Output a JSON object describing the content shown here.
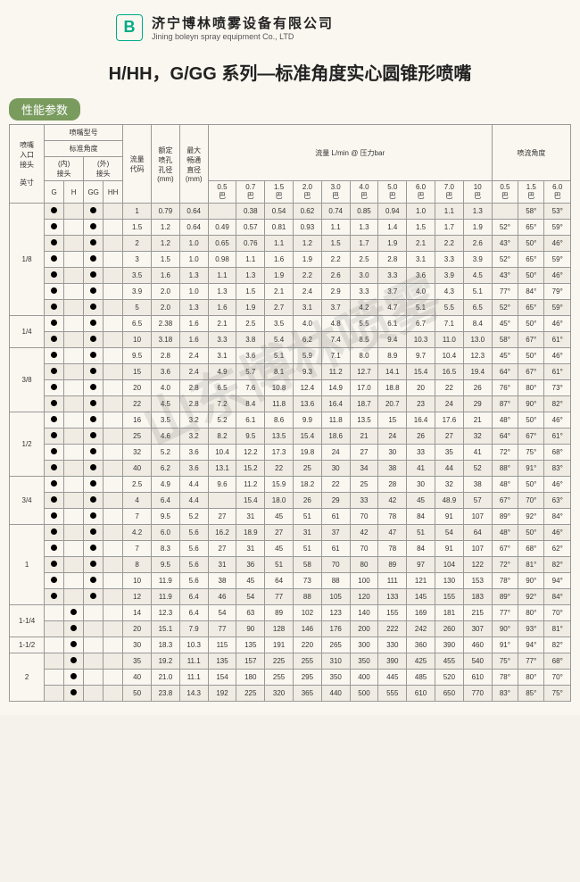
{
  "company": {
    "cn": "济宁博林喷雾设备有限公司",
    "en": "Jining boleyn spray equipment Co., LTD"
  },
  "title": "H/HH，G/GG 系列—标准角度实心圆锥形喷嘴",
  "section_label": "性能参数",
  "watermark": "山东博林喷雾",
  "headers": {
    "inlet": "喷嘴\n入口\n接头\n\n英寸",
    "model": "喷嘴型号",
    "std_angle": "标准角度",
    "inner": "(内)\n接头",
    "outer": "(外)\n接头",
    "g": "G",
    "h": "H",
    "gg": "GG",
    "hh": "HH",
    "flow_code": "流量\n代码",
    "orifice": "额定\n喷孔\n孔径\n(mm)",
    "max_pass": "最大\n畅通\n直径\n(mm)",
    "flow_label": "流量  L/min @ 压力bar",
    "spray_angle": "喷流角度",
    "p05": "0.5\n巴",
    "p07": "0.7\n巴",
    "p15": "1.5\n巴",
    "p20": "2.0\n巴",
    "p30": "3.0\n巴",
    "p40": "4.0\n巴",
    "p50": "5.0\n巴",
    "p60": "6.0\n巴",
    "p70": "7.0\n巴",
    "p10": "10\n巴",
    "a05": "0.5\n巴",
    "a15": "1.5\n巴",
    "a60": "6.0\n巴"
  },
  "groups": [
    {
      "inlet": "1/8",
      "rows": [
        {
          "d": [
            "g",
            "gg"
          ],
          "c": "1",
          "o": "0.79",
          "m": "0.64",
          "f": [
            "",
            "0.38",
            "0.54",
            "0.62",
            "0.74",
            "0.85",
            "0.94",
            "1.0",
            "1.1",
            "1.3"
          ],
          "a": [
            "",
            "58°",
            "53°"
          ]
        },
        {
          "d": [
            "g",
            "gg"
          ],
          "c": "1.5",
          "o": "1.2",
          "m": "0.64",
          "f": [
            "0.49",
            "0.57",
            "0.81",
            "0.93",
            "1.1",
            "1.3",
            "1.4",
            "1.5",
            "1.7",
            "1.9"
          ],
          "a": [
            "52°",
            "65°",
            "59°"
          ]
        },
        {
          "d": [
            "g",
            "gg"
          ],
          "c": "2",
          "o": "1.2",
          "m": "1.0",
          "f": [
            "0.65",
            "0.76",
            "1.1",
            "1.2",
            "1.5",
            "1.7",
            "1.9",
            "2.1",
            "2.2",
            "2.6"
          ],
          "a": [
            "43°",
            "50°",
            "46°"
          ]
        },
        {
          "d": [
            "g",
            "gg"
          ],
          "c": "3",
          "o": "1.5",
          "m": "1.0",
          "f": [
            "0.98",
            "1.1",
            "1.6",
            "1.9",
            "2.2",
            "2.5",
            "2.8",
            "3.1",
            "3.3",
            "3.9"
          ],
          "a": [
            "52°",
            "65°",
            "59°"
          ]
        },
        {
          "d": [
            "g",
            "gg"
          ],
          "c": "3.5",
          "o": "1.6",
          "m": "1.3",
          "f": [
            "1.1",
            "1.3",
            "1.9",
            "2.2",
            "2.6",
            "3.0",
            "3.3",
            "3.6",
            "3.9",
            "4.5"
          ],
          "a": [
            "43°",
            "50°",
            "46°"
          ]
        },
        {
          "d": [
            "g",
            "gg"
          ],
          "c": "3.9",
          "o": "2.0",
          "m": "1.0",
          "f": [
            "1.3",
            "1.5",
            "2.1",
            "2.4",
            "2.9",
            "3.3",
            "3.7",
            "4.0",
            "4.3",
            "5.1"
          ],
          "a": [
            "77°",
            "84°",
            "79°"
          ]
        },
        {
          "d": [
            "g",
            "gg"
          ],
          "c": "5",
          "o": "2.0",
          "m": "1.3",
          "f": [
            "1.6",
            "1.9",
            "2.7",
            "3.1",
            "3.7",
            "4.2",
            "4.7",
            "5.1",
            "5.5",
            "6.5"
          ],
          "a": [
            "52°",
            "65°",
            "59°"
          ]
        }
      ]
    },
    {
      "inlet": "1/4",
      "rows": [
        {
          "d": [
            "g",
            "gg"
          ],
          "c": "6.5",
          "o": "2.38",
          "m": "1.6",
          "f": [
            "2.1",
            "2.5",
            "3.5",
            "4.0",
            "4.8",
            "5.5",
            "6.1",
            "6.7",
            "7.1",
            "8.4"
          ],
          "a": [
            "45°",
            "50°",
            "46°"
          ]
        },
        {
          "d": [
            "g",
            "gg"
          ],
          "c": "10",
          "o": "3.18",
          "m": "1.6",
          "f": [
            "3.3",
            "3.8",
            "5.4",
            "6.2",
            "7.4",
            "8.5",
            "9.4",
            "10.3",
            "11.0",
            "13.0"
          ],
          "a": [
            "58°",
            "67°",
            "61°"
          ]
        }
      ]
    },
    {
      "inlet": "3/8",
      "rows": [
        {
          "d": [
            "g",
            "gg"
          ],
          "c": "9.5",
          "o": "2.8",
          "m": "2.4",
          "f": [
            "3.1",
            "3.6",
            "5.1",
            "5.9",
            "7.1",
            "8.0",
            "8.9",
            "9.7",
            "10.4",
            "12.3"
          ],
          "a": [
            "45°",
            "50°",
            "46°"
          ]
        },
        {
          "d": [
            "g",
            "gg"
          ],
          "c": "15",
          "o": "3.6",
          "m": "2.4",
          "f": [
            "4.9",
            "5.7",
            "8.1",
            "9.3",
            "11.2",
            "12.7",
            "14.1",
            "15.4",
            "16.5",
            "19.4"
          ],
          "a": [
            "64°",
            "67°",
            "61°"
          ]
        },
        {
          "d": [
            "g",
            "gg"
          ],
          "c": "20",
          "o": "4.0",
          "m": "2.8",
          "f": [
            "6.5",
            "7.6",
            "10.8",
            "12.4",
            "14.9",
            "17.0",
            "18.8",
            "20",
            "22",
            "26"
          ],
          "a": [
            "76°",
            "80°",
            "73°"
          ]
        },
        {
          "d": [
            "g",
            "gg"
          ],
          "c": "22",
          "o": "4.5",
          "m": "2.8",
          "f": [
            "7.2",
            "8.4",
            "11.8",
            "13.6",
            "16.4",
            "18.7",
            "20.7",
            "23",
            "24",
            "29"
          ],
          "a": [
            "87°",
            "90°",
            "82°"
          ]
        }
      ]
    },
    {
      "inlet": "1/2",
      "rows": [
        {
          "d": [
            "g",
            "gg"
          ],
          "c": "16",
          "o": "3.5",
          "m": "3.2",
          "f": [
            "5.2",
            "6.1",
            "8.6",
            "9.9",
            "11.8",
            "13.5",
            "15",
            "16.4",
            "17.6",
            "21"
          ],
          "a": [
            "48°",
            "50°",
            "46°"
          ]
        },
        {
          "d": [
            "g",
            "gg"
          ],
          "c": "25",
          "o": "4.6",
          "m": "3.2",
          "f": [
            "8.2",
            "9.5",
            "13.5",
            "15.4",
            "18.6",
            "21",
            "24",
            "26",
            "27",
            "32"
          ],
          "a": [
            "64°",
            "67°",
            "61°"
          ]
        },
        {
          "d": [
            "g",
            "gg"
          ],
          "c": "32",
          "o": "5.2",
          "m": "3.6",
          "f": [
            "10.4",
            "12.2",
            "17.3",
            "19.8",
            "24",
            "27",
            "30",
            "33",
            "35",
            "41"
          ],
          "a": [
            "72°",
            "75°",
            "68°"
          ]
        },
        {
          "d": [
            "g",
            "gg"
          ],
          "c": "40",
          "o": "6.2",
          "m": "3.6",
          "f": [
            "13.1",
            "15.2",
            "22",
            "25",
            "30",
            "34",
            "38",
            "41",
            "44",
            "52"
          ],
          "a": [
            "88°",
            "91°",
            "83°"
          ]
        }
      ]
    },
    {
      "inlet": "3/4",
      "rows": [
        {
          "d": [
            "g",
            "gg"
          ],
          "c": "2.5",
          "o": "4.9",
          "m": "4.4",
          "f": [
            "9.6",
            "11.2",
            "15.9",
            "18.2",
            "22",
            "25",
            "28",
            "30",
            "32",
            "38"
          ],
          "a": [
            "48°",
            "50°",
            "46°"
          ]
        },
        {
          "d": [
            "g",
            "gg"
          ],
          "c": "4",
          "o": "6.4",
          "m": "4.4",
          "f": [
            "",
            "15.4",
            "18.0",
            "26",
            "29",
            "33",
            "42",
            "45",
            "48.9",
            "57"
          ],
          "a": [
            "67°",
            "70°",
            "63°"
          ]
        },
        {
          "d": [
            "g",
            "gg"
          ],
          "c": "7",
          "o": "9.5",
          "m": "5.2",
          "f": [
            "27",
            "31",
            "45",
            "51",
            "61",
            "70",
            "78",
            "84",
            "91",
            "107"
          ],
          "a": [
            "89°",
            "92°",
            "84°"
          ]
        }
      ]
    },
    {
      "inlet": "1",
      "rows": [
        {
          "d": [
            "g",
            "gg"
          ],
          "c": "4.2",
          "o": "6.0",
          "m": "5.6",
          "f": [
            "16.2",
            "18.9",
            "27",
            "31",
            "37",
            "42",
            "47",
            "51",
            "54",
            "64"
          ],
          "a": [
            "48°",
            "50°",
            "46°"
          ]
        },
        {
          "d": [
            "g",
            "gg"
          ],
          "c": "7",
          "o": "8.3",
          "m": "5.6",
          "f": [
            "27",
            "31",
            "45",
            "51",
            "61",
            "70",
            "78",
            "84",
            "91",
            "107"
          ],
          "a": [
            "67°",
            "68°",
            "62°"
          ]
        },
        {
          "d": [
            "g",
            "gg"
          ],
          "c": "8",
          "o": "9.5",
          "m": "5.6",
          "f": [
            "31",
            "36",
            "51",
            "58",
            "70",
            "80",
            "89",
            "97",
            "104",
            "122"
          ],
          "a": [
            "72°",
            "81°",
            "82°"
          ]
        },
        {
          "d": [
            "g",
            "gg"
          ],
          "c": "10",
          "o": "11.9",
          "m": "5.6",
          "f": [
            "38",
            "45",
            "64",
            "73",
            "88",
            "100",
            "111",
            "121",
            "130",
            "153"
          ],
          "a": [
            "78°",
            "90°",
            "94°"
          ]
        },
        {
          "d": [
            "g",
            "gg"
          ],
          "c": "12",
          "o": "11.9",
          "m": "6.4",
          "f": [
            "46",
            "54",
            "77",
            "88",
            "105",
            "120",
            "133",
            "145",
            "155",
            "183"
          ],
          "a": [
            "89°",
            "92°",
            "84°"
          ]
        }
      ]
    },
    {
      "inlet": "1-1/4",
      "rows": [
        {
          "d": [
            "h"
          ],
          "c": "14",
          "o": "12.3",
          "m": "6.4",
          "f": [
            "54",
            "63",
            "89",
            "102",
            "123",
            "140",
            "155",
            "169",
            "181",
            "215"
          ],
          "a": [
            "77°",
            "80°",
            "70°"
          ]
        },
        {
          "d": [
            "h"
          ],
          "c": "20",
          "o": "15.1",
          "m": "7.9",
          "f": [
            "77",
            "90",
            "128",
            "146",
            "176",
            "200",
            "222",
            "242",
            "260",
            "307"
          ],
          "a": [
            "90°",
            "93°",
            "81°"
          ]
        }
      ]
    },
    {
      "inlet": "1-1/2",
      "rows": [
        {
          "d": [
            "h"
          ],
          "c": "30",
          "o": "18.3",
          "m": "10.3",
          "f": [
            "115",
            "135",
            "191",
            "220",
            "265",
            "300",
            "330",
            "360",
            "390",
            "460"
          ],
          "a": [
            "91°",
            "94°",
            "82°"
          ]
        }
      ]
    },
    {
      "inlet": "2",
      "rows": [
        {
          "d": [
            "h"
          ],
          "c": "35",
          "o": "19.2",
          "m": "11.1",
          "f": [
            "135",
            "157",
            "225",
            "255",
            "310",
            "350",
            "390",
            "425",
            "455",
            "540"
          ],
          "a": [
            "75°",
            "77°",
            "68°"
          ]
        },
        {
          "d": [
            "h"
          ],
          "c": "40",
          "o": "21.0",
          "m": "11.1",
          "f": [
            "154",
            "180",
            "255",
            "295",
            "350",
            "400",
            "445",
            "485",
            "520",
            "610"
          ],
          "a": [
            "78°",
            "80°",
            "70°"
          ]
        },
        {
          "d": [
            "h"
          ],
          "c": "50",
          "o": "23.8",
          "m": "14.3",
          "f": [
            "192",
            "225",
            "320",
            "365",
            "440",
            "500",
            "555",
            "610",
            "650",
            "770"
          ],
          "a": [
            "83°",
            "85°",
            "75°"
          ]
        }
      ]
    }
  ]
}
